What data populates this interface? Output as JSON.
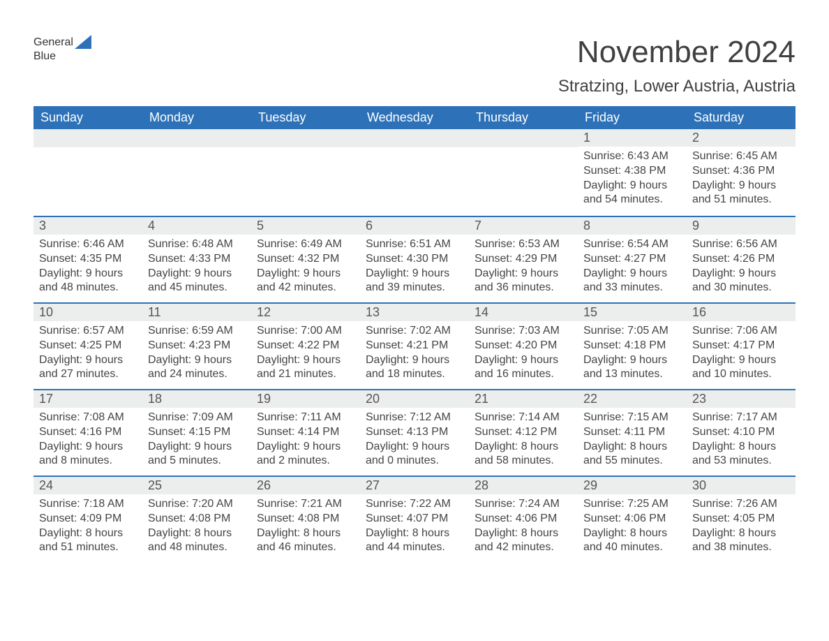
{
  "brand": {
    "part1": "General",
    "part2": "Blue"
  },
  "title": "November 2024",
  "location": "Stratzing, Lower Austria, Austria",
  "colors": {
    "header_bg": "#2d72b8",
    "header_text": "#ffffff",
    "daynum_bg": "#eceded",
    "row_border": "#2d72b8",
    "body_text": "#444444",
    "page_bg": "#ffffff"
  },
  "typography": {
    "title_fontsize": 44,
    "location_fontsize": 24,
    "weekday_fontsize": 18,
    "daynum_fontsize": 18,
    "body_fontsize": 16
  },
  "weekdays": [
    "Sunday",
    "Monday",
    "Tuesday",
    "Wednesday",
    "Thursday",
    "Friday",
    "Saturday"
  ],
  "weeks": [
    [
      null,
      null,
      null,
      null,
      null,
      {
        "n": "1",
        "sr": "Sunrise: 6:43 AM",
        "ss": "Sunset: 4:38 PM",
        "d1": "Daylight: 9 hours",
        "d2": "and 54 minutes."
      },
      {
        "n": "2",
        "sr": "Sunrise: 6:45 AM",
        "ss": "Sunset: 4:36 PM",
        "d1": "Daylight: 9 hours",
        "d2": "and 51 minutes."
      }
    ],
    [
      {
        "n": "3",
        "sr": "Sunrise: 6:46 AM",
        "ss": "Sunset: 4:35 PM",
        "d1": "Daylight: 9 hours",
        "d2": "and 48 minutes."
      },
      {
        "n": "4",
        "sr": "Sunrise: 6:48 AM",
        "ss": "Sunset: 4:33 PM",
        "d1": "Daylight: 9 hours",
        "d2": "and 45 minutes."
      },
      {
        "n": "5",
        "sr": "Sunrise: 6:49 AM",
        "ss": "Sunset: 4:32 PM",
        "d1": "Daylight: 9 hours",
        "d2": "and 42 minutes."
      },
      {
        "n": "6",
        "sr": "Sunrise: 6:51 AM",
        "ss": "Sunset: 4:30 PM",
        "d1": "Daylight: 9 hours",
        "d2": "and 39 minutes."
      },
      {
        "n": "7",
        "sr": "Sunrise: 6:53 AM",
        "ss": "Sunset: 4:29 PM",
        "d1": "Daylight: 9 hours",
        "d2": "and 36 minutes."
      },
      {
        "n": "8",
        "sr": "Sunrise: 6:54 AM",
        "ss": "Sunset: 4:27 PM",
        "d1": "Daylight: 9 hours",
        "d2": "and 33 minutes."
      },
      {
        "n": "9",
        "sr": "Sunrise: 6:56 AM",
        "ss": "Sunset: 4:26 PM",
        "d1": "Daylight: 9 hours",
        "d2": "and 30 minutes."
      }
    ],
    [
      {
        "n": "10",
        "sr": "Sunrise: 6:57 AM",
        "ss": "Sunset: 4:25 PM",
        "d1": "Daylight: 9 hours",
        "d2": "and 27 minutes."
      },
      {
        "n": "11",
        "sr": "Sunrise: 6:59 AM",
        "ss": "Sunset: 4:23 PM",
        "d1": "Daylight: 9 hours",
        "d2": "and 24 minutes."
      },
      {
        "n": "12",
        "sr": "Sunrise: 7:00 AM",
        "ss": "Sunset: 4:22 PM",
        "d1": "Daylight: 9 hours",
        "d2": "and 21 minutes."
      },
      {
        "n": "13",
        "sr": "Sunrise: 7:02 AM",
        "ss": "Sunset: 4:21 PM",
        "d1": "Daylight: 9 hours",
        "d2": "and 18 minutes."
      },
      {
        "n": "14",
        "sr": "Sunrise: 7:03 AM",
        "ss": "Sunset: 4:20 PM",
        "d1": "Daylight: 9 hours",
        "d2": "and 16 minutes."
      },
      {
        "n": "15",
        "sr": "Sunrise: 7:05 AM",
        "ss": "Sunset: 4:18 PM",
        "d1": "Daylight: 9 hours",
        "d2": "and 13 minutes."
      },
      {
        "n": "16",
        "sr": "Sunrise: 7:06 AM",
        "ss": "Sunset: 4:17 PM",
        "d1": "Daylight: 9 hours",
        "d2": "and 10 minutes."
      }
    ],
    [
      {
        "n": "17",
        "sr": "Sunrise: 7:08 AM",
        "ss": "Sunset: 4:16 PM",
        "d1": "Daylight: 9 hours",
        "d2": "and 8 minutes."
      },
      {
        "n": "18",
        "sr": "Sunrise: 7:09 AM",
        "ss": "Sunset: 4:15 PM",
        "d1": "Daylight: 9 hours",
        "d2": "and 5 minutes."
      },
      {
        "n": "19",
        "sr": "Sunrise: 7:11 AM",
        "ss": "Sunset: 4:14 PM",
        "d1": "Daylight: 9 hours",
        "d2": "and 2 minutes."
      },
      {
        "n": "20",
        "sr": "Sunrise: 7:12 AM",
        "ss": "Sunset: 4:13 PM",
        "d1": "Daylight: 9 hours",
        "d2": "and 0 minutes."
      },
      {
        "n": "21",
        "sr": "Sunrise: 7:14 AM",
        "ss": "Sunset: 4:12 PM",
        "d1": "Daylight: 8 hours",
        "d2": "and 58 minutes."
      },
      {
        "n": "22",
        "sr": "Sunrise: 7:15 AM",
        "ss": "Sunset: 4:11 PM",
        "d1": "Daylight: 8 hours",
        "d2": "and 55 minutes."
      },
      {
        "n": "23",
        "sr": "Sunrise: 7:17 AM",
        "ss": "Sunset: 4:10 PM",
        "d1": "Daylight: 8 hours",
        "d2": "and 53 minutes."
      }
    ],
    [
      {
        "n": "24",
        "sr": "Sunrise: 7:18 AM",
        "ss": "Sunset: 4:09 PM",
        "d1": "Daylight: 8 hours",
        "d2": "and 51 minutes."
      },
      {
        "n": "25",
        "sr": "Sunrise: 7:20 AM",
        "ss": "Sunset: 4:08 PM",
        "d1": "Daylight: 8 hours",
        "d2": "and 48 minutes."
      },
      {
        "n": "26",
        "sr": "Sunrise: 7:21 AM",
        "ss": "Sunset: 4:08 PM",
        "d1": "Daylight: 8 hours",
        "d2": "and 46 minutes."
      },
      {
        "n": "27",
        "sr": "Sunrise: 7:22 AM",
        "ss": "Sunset: 4:07 PM",
        "d1": "Daylight: 8 hours",
        "d2": "and 44 minutes."
      },
      {
        "n": "28",
        "sr": "Sunrise: 7:24 AM",
        "ss": "Sunset: 4:06 PM",
        "d1": "Daylight: 8 hours",
        "d2": "and 42 minutes."
      },
      {
        "n": "29",
        "sr": "Sunrise: 7:25 AM",
        "ss": "Sunset: 4:06 PM",
        "d1": "Daylight: 8 hours",
        "d2": "and 40 minutes."
      },
      {
        "n": "30",
        "sr": "Sunrise: 7:26 AM",
        "ss": "Sunset: 4:05 PM",
        "d1": "Daylight: 8 hours",
        "d2": "and 38 minutes."
      }
    ]
  ]
}
